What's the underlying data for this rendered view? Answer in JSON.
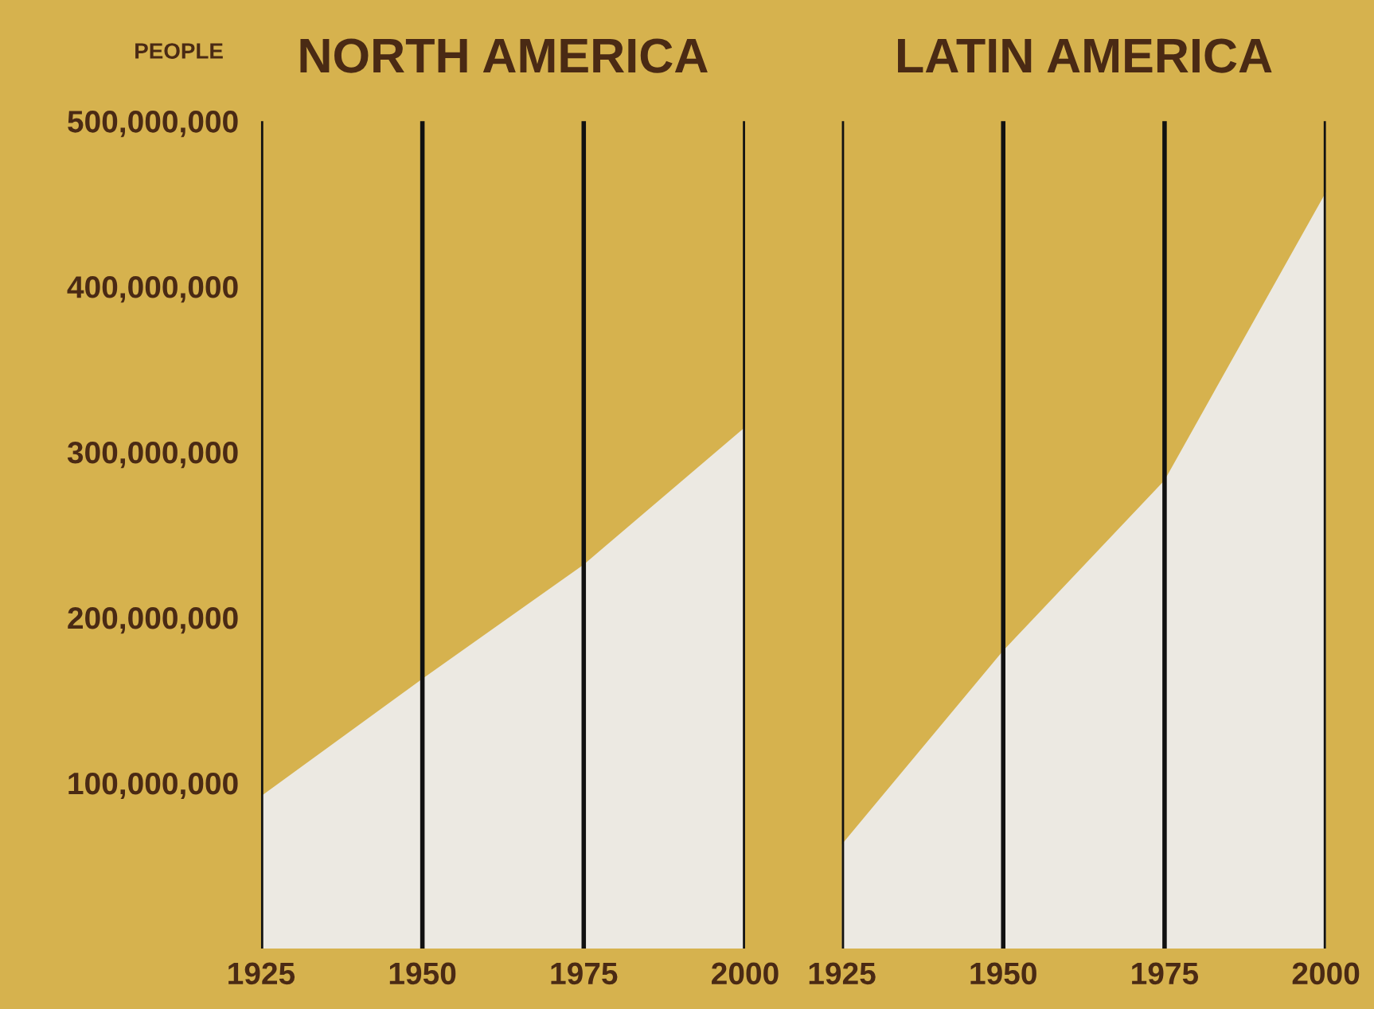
{
  "chart_data": [
    {
      "type": "area",
      "title": "NORTH AMERICA",
      "ylabel": "PEOPLE",
      "x": [
        1925,
        1950,
        1975,
        2000
      ],
      "series": [
        {
          "color": "#ece9e2",
          "values": [
            92000000,
            163000000,
            232000000,
            315000000
          ]
        }
      ],
      "xlim": [
        1925,
        2000
      ],
      "xticks": [
        1925,
        1950,
        1975,
        2000
      ],
      "ylim": [
        0,
        500000000
      ],
      "yticks": [
        {
          "value": 100000000,
          "label": "100,000,000"
        },
        {
          "value": 200000000,
          "label": "200,000,000"
        },
        {
          "value": 300000000,
          "label": "300,000,000"
        },
        {
          "value": 400000000,
          "label": "400,000,000"
        },
        {
          "value": 500000000,
          "label": "500,000,000"
        }
      ],
      "grid": "x"
    },
    {
      "type": "area",
      "title": "LATIN AMERICA",
      "x": [
        1925,
        1950,
        1975,
        2000
      ],
      "series": [
        {
          "color": "#ece9e2",
          "values": [
            63000000,
            180000000,
            283000000,
            457000000
          ]
        }
      ],
      "xlim": [
        1925,
        2000
      ],
      "xticks": [
        1925,
        1950,
        1975,
        2000
      ],
      "ylim": [
        0,
        500000000
      ],
      "grid": "x",
      "tick_labels": "x"
    }
  ]
}
